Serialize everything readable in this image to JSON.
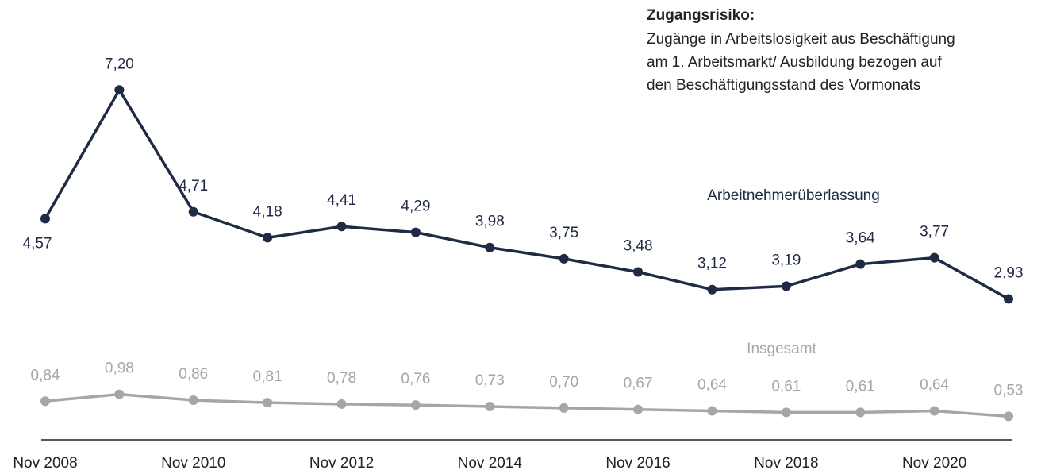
{
  "chart_data": {
    "type": "line",
    "annotation": {
      "title": "Zugangsrisiko:",
      "lines": [
        "Zugänge in Arbeitslosigkeit aus Beschäftigung",
        "am 1. Arbeitsmarkt/ Ausbildung bezogen auf",
        "den Beschäftigungsstand des Vormonats"
      ]
    },
    "categories": [
      "Nov 2008",
      null,
      "Nov 2010",
      null,
      "Nov 2012",
      null,
      "Nov 2014",
      null,
      "Nov 2016",
      null,
      "Nov 2018",
      null,
      "Nov 2020",
      null
    ],
    "series": [
      {
        "name": "Arbeitnehmerüberlassung",
        "color": "#1f2a44",
        "values": [
          4.57,
          7.2,
          4.71,
          4.18,
          4.41,
          4.29,
          3.98,
          3.75,
          3.48,
          3.12,
          3.19,
          3.64,
          3.77,
          2.93
        ],
        "value_labels": [
          "4,57",
          "7,20",
          "4,71",
          "4,18",
          "4,41",
          "4,29",
          "3,98",
          "3,75",
          "3,48",
          "3,12",
          "3,19",
          "3,64",
          "3,77",
          "2,93"
        ]
      },
      {
        "name": "Insgesamt",
        "color": "#a6a6a6",
        "values": [
          0.84,
          0.98,
          0.86,
          0.81,
          0.78,
          0.76,
          0.73,
          0.7,
          0.67,
          0.64,
          0.61,
          0.61,
          0.64,
          0.53
        ],
        "value_labels": [
          "0,84",
          "0,98",
          "0,86",
          "0,81",
          "0,78",
          "0,76",
          "0,73",
          "0,70",
          "0,67",
          "0,64",
          "0,61",
          "0,61",
          "0,64",
          "0,53"
        ]
      }
    ],
    "ylim": [
      0,
      8
    ]
  }
}
